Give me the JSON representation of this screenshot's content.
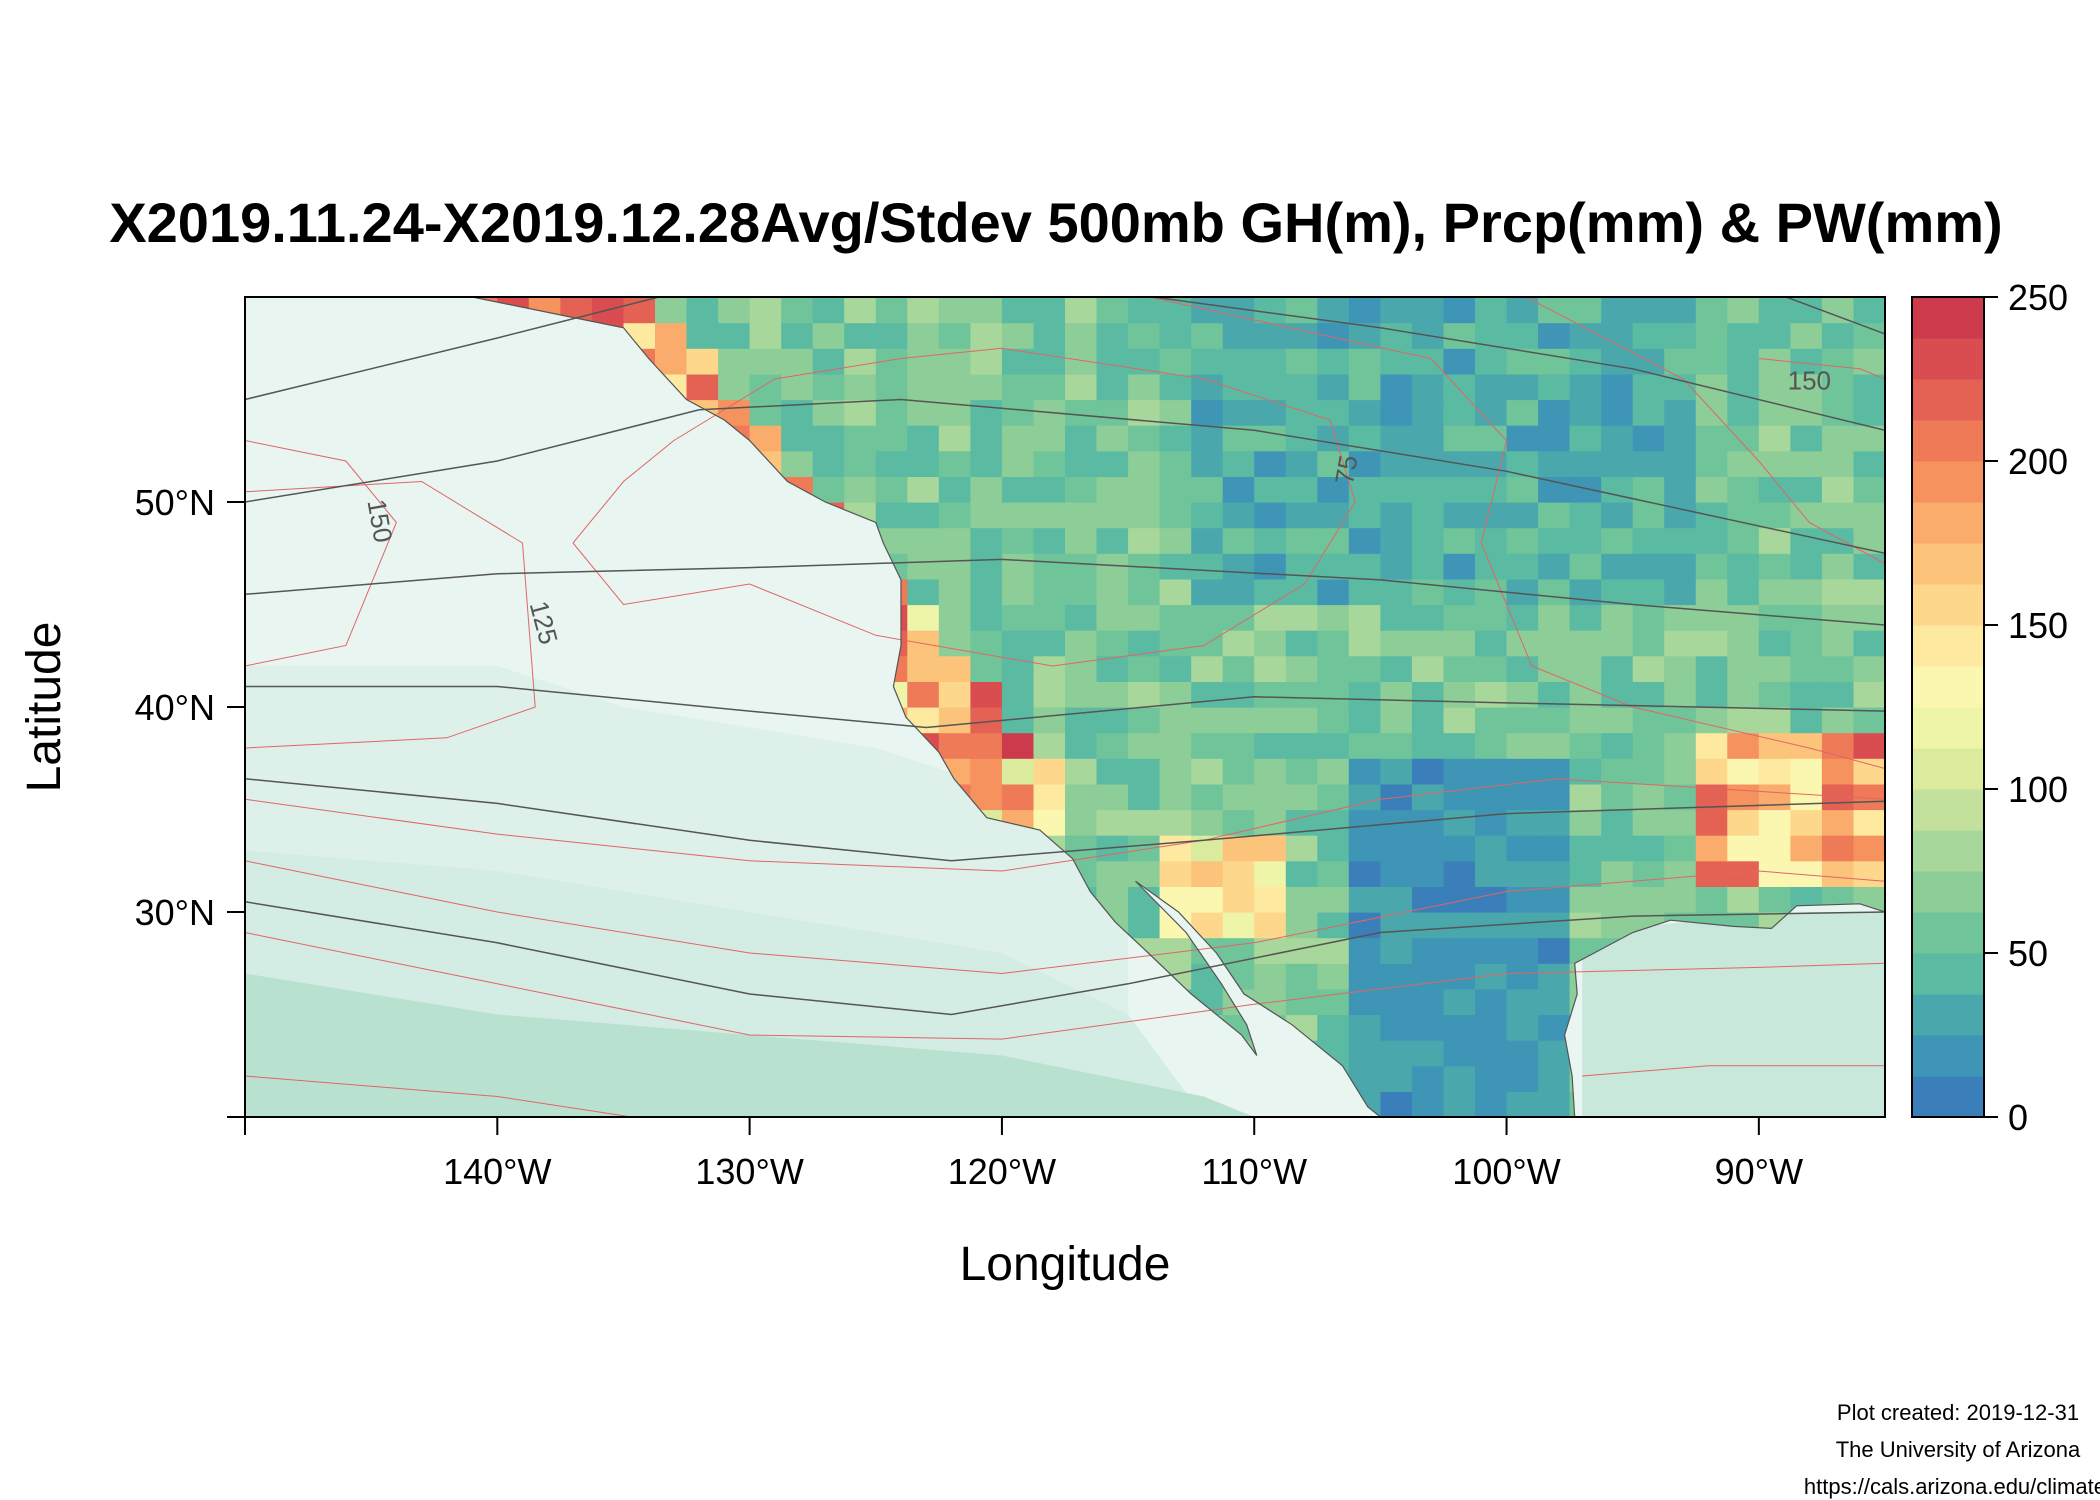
{
  "title": "X2019.11.24-X2019.12.28Avg/Stdev 500mb GH(m), Prcp(mm) & PW(mm)",
  "map": {
    "xlabel": "Longitude",
    "ylabel": "Latitude",
    "lon_range": [
      -150,
      -85
    ],
    "lat_range": [
      20,
      60
    ],
    "lon_ticks": [
      {
        "value": -140,
        "label": "140°W"
      },
      {
        "value": -130,
        "label": "130°W"
      },
      {
        "value": -120,
        "label": "120°W"
      },
      {
        "value": -110,
        "label": "110°W"
      },
      {
        "value": -100,
        "label": "100°W"
      },
      {
        "value": -90,
        "label": "90°W"
      }
    ],
    "lat_ticks": [
      {
        "value": 30,
        "label": "30°N"
      },
      {
        "value": 40,
        "label": "40°N"
      },
      {
        "value": 50,
        "label": "50°N"
      }
    ],
    "contour_labels": [
      {
        "text": "150",
        "lon": -145,
        "lat": 49,
        "rotate": 80
      },
      {
        "text": "125",
        "lon": -138.5,
        "lat": 44,
        "rotate": 75
      },
      {
        "text": "75",
        "lon": -106,
        "lat": 51.5,
        "rotate": -80
      },
      {
        "text": "150",
        "lon": -88,
        "lat": 55.5,
        "rotate": 0
      }
    ],
    "colors": {
      "ocean_light": "#e8f5f1",
      "ocean_mid": "#d3ece4",
      "ocean_deep": "#b9e1cf",
      "gh_contour": "#555555",
      "pw_contour": "#e06666",
      "coast": "#555555"
    }
  },
  "colorbar": {
    "min": 0,
    "max": 250,
    "ticks": [
      "0",
      "50",
      "100",
      "150",
      "200",
      "250"
    ],
    "colors": [
      "#3a7fb9",
      "#3f95b6",
      "#4aa8ad",
      "#5bbaa2",
      "#6fc49a",
      "#8ccd98",
      "#a7d79a",
      "#c3e19c",
      "#dbeb9e",
      "#eef5a8",
      "#fbf7b0",
      "#fde9a0",
      "#fdd88c",
      "#fcc47a",
      "#f9ac6b",
      "#f5925e",
      "#ee7a57",
      "#e46253",
      "#d94c50",
      "#cc3a4c"
    ]
  },
  "credits": {
    "line1": "Plot created: 2019-12-31",
    "line2": "The University of Arizona",
    "line3": "https://cals.arizona.edu/climate/"
  }
}
